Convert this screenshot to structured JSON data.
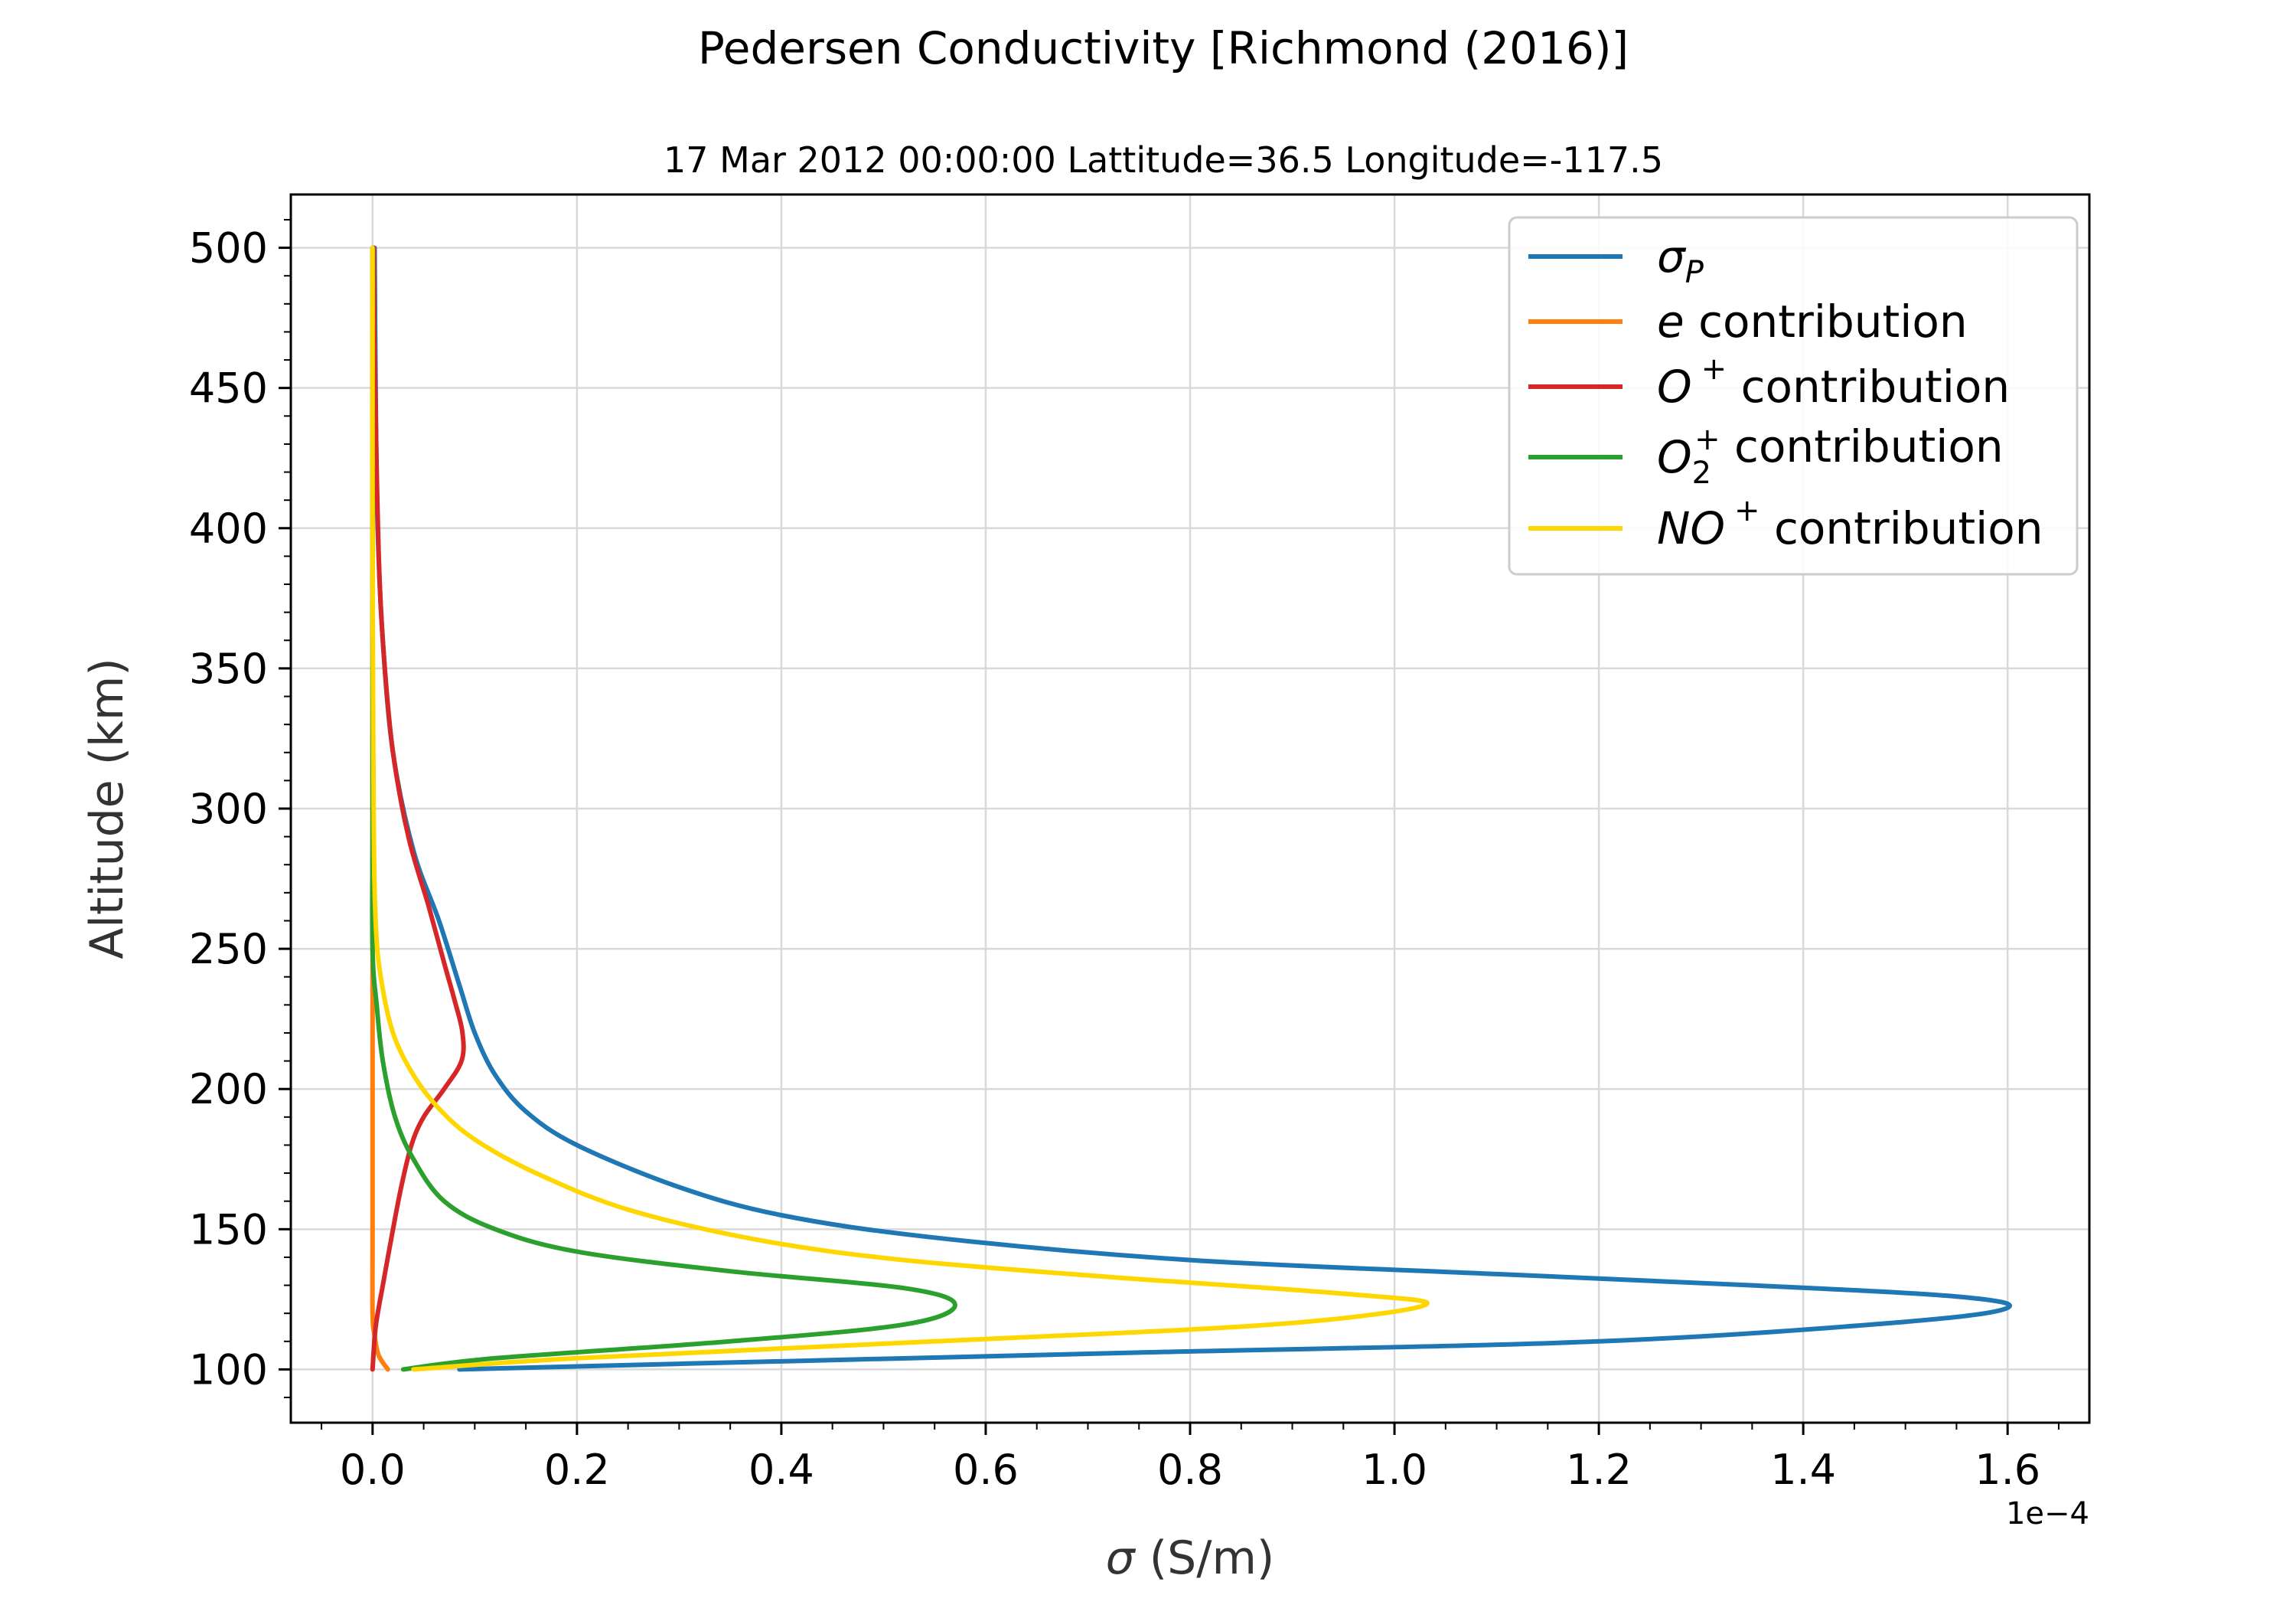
{
  "chart_data": {
    "type": "line",
    "title": "Pedersen Conductivity [Richmond (2016)]",
    "subtitle": "17 Mar 2012 00:00:00 Lattitude=36.5 Longitude=-117.5",
    "xlabel_symbol": "σ",
    "xlabel_unit": " (S/m)",
    "ylabel": "Altitude (km)",
    "x_offset_label": "1e−4",
    "x_multiplier": 0.0001,
    "xlim": [
      -0.08,
      1.68
    ],
    "ylim": [
      81,
      519
    ],
    "x_ticks": [
      0.0,
      0.2,
      0.4,
      0.6,
      0.8,
      1.0,
      1.2,
      1.4,
      1.6
    ],
    "x_tick_labels": [
      "0.0",
      "0.2",
      "0.4",
      "0.6",
      "0.8",
      "1.0",
      "1.2",
      "1.4",
      "1.6"
    ],
    "y_ticks": [
      100,
      150,
      200,
      250,
      300,
      350,
      400,
      450,
      500
    ],
    "y_tick_labels": [
      "100",
      "150",
      "200",
      "250",
      "300",
      "350",
      "400",
      "450",
      "500"
    ],
    "grid": true,
    "legend_position": "upper right",
    "series": [
      {
        "name": "σP",
        "label_main": "σ",
        "label_sub": "P",
        "label_suffix": "",
        "color": "#1f77b4",
        "points": [
          [
            0.085,
            100
          ],
          [
            0.3,
            102
          ],
          [
            0.75,
            106
          ],
          [
            1.2,
            110
          ],
          [
            1.5,
            117
          ],
          [
            1.6,
            122
          ],
          [
            1.55,
            126
          ],
          [
            1.35,
            130
          ],
          [
            1.1,
            134
          ],
          [
            0.8,
            139
          ],
          [
            0.55,
            147
          ],
          [
            0.4,
            155
          ],
          [
            0.3,
            165
          ],
          [
            0.2,
            180
          ],
          [
            0.15,
            192
          ],
          [
            0.12,
            205
          ],
          [
            0.1,
            220
          ],
          [
            0.085,
            237
          ],
          [
            0.065,
            260
          ],
          [
            0.04,
            285
          ],
          [
            0.02,
            320
          ],
          [
            0.01,
            360
          ],
          [
            0.005,
            400
          ],
          [
            0.003,
            450
          ],
          [
            0.002,
            500
          ]
        ]
      },
      {
        "name": "e contribution",
        "label_main": "e",
        "label_sub": "",
        "label_suffix": " contribution",
        "color": "#ff7f0e",
        "points": [
          [
            0.015,
            100
          ],
          [
            0.006,
            105
          ],
          [
            0.002,
            112
          ],
          [
            0.0,
            120
          ],
          [
            0.0,
            150
          ],
          [
            0.0,
            200
          ],
          [
            0.0,
            250
          ],
          [
            0.0,
            300
          ],
          [
            0.0,
            400
          ],
          [
            0.0,
            500
          ]
        ]
      },
      {
        "name": "O+ contribution",
        "label_main": "O",
        "label_sub": "",
        "label_sup": "+",
        "label_suffix": " contribution",
        "color": "#d62728",
        "points": [
          [
            0.0,
            100
          ],
          [
            0.003,
            115
          ],
          [
            0.01,
            130
          ],
          [
            0.02,
            150
          ],
          [
            0.028,
            165
          ],
          [
            0.038,
            180
          ],
          [
            0.05,
            190
          ],
          [
            0.07,
            200
          ],
          [
            0.087,
            210
          ],
          [
            0.088,
            220
          ],
          [
            0.08,
            232
          ],
          [
            0.07,
            245
          ],
          [
            0.055,
            265
          ],
          [
            0.035,
            290
          ],
          [
            0.02,
            320
          ],
          [
            0.012,
            350
          ],
          [
            0.007,
            380
          ],
          [
            0.004,
            420
          ],
          [
            0.002,
            460
          ],
          [
            0.001,
            500
          ]
        ]
      },
      {
        "name": "O2+ contribution",
        "label_main": "O",
        "label_sub": "2",
        "label_sup": "+",
        "label_suffix": " contribution",
        "color": "#2ca02c",
        "points": [
          [
            0.03,
            100
          ],
          [
            0.12,
            104
          ],
          [
            0.35,
            110
          ],
          [
            0.52,
            116
          ],
          [
            0.57,
            123
          ],
          [
            0.52,
            129
          ],
          [
            0.35,
            135
          ],
          [
            0.2,
            142
          ],
          [
            0.12,
            150
          ],
          [
            0.07,
            160
          ],
          [
            0.04,
            175
          ],
          [
            0.022,
            190
          ],
          [
            0.01,
            210
          ],
          [
            0.004,
            230
          ],
          [
            0.0,
            250
          ],
          [
            0.0,
            300
          ],
          [
            0.0,
            400
          ],
          [
            0.0,
            500
          ]
        ]
      },
      {
        "name": "NO+ contribution",
        "label_main": "NO",
        "label_sub": "",
        "label_sup": "+",
        "label_suffix": " contribution",
        "color": "#ffd700",
        "points": [
          [
            0.04,
            100
          ],
          [
            0.2,
            104
          ],
          [
            0.55,
            110
          ],
          [
            0.88,
            116
          ],
          [
            1.03,
            123
          ],
          [
            0.95,
            127
          ],
          [
            0.72,
            133
          ],
          [
            0.52,
            139
          ],
          [
            0.38,
            146
          ],
          [
            0.25,
            157
          ],
          [
            0.16,
            170
          ],
          [
            0.1,
            182
          ],
          [
            0.065,
            193
          ],
          [
            0.04,
            205
          ],
          [
            0.02,
            220
          ],
          [
            0.008,
            240
          ],
          [
            0.003,
            260
          ],
          [
            0.001,
            300
          ],
          [
            0.0,
            400
          ],
          [
            0.0,
            500
          ]
        ]
      }
    ]
  }
}
